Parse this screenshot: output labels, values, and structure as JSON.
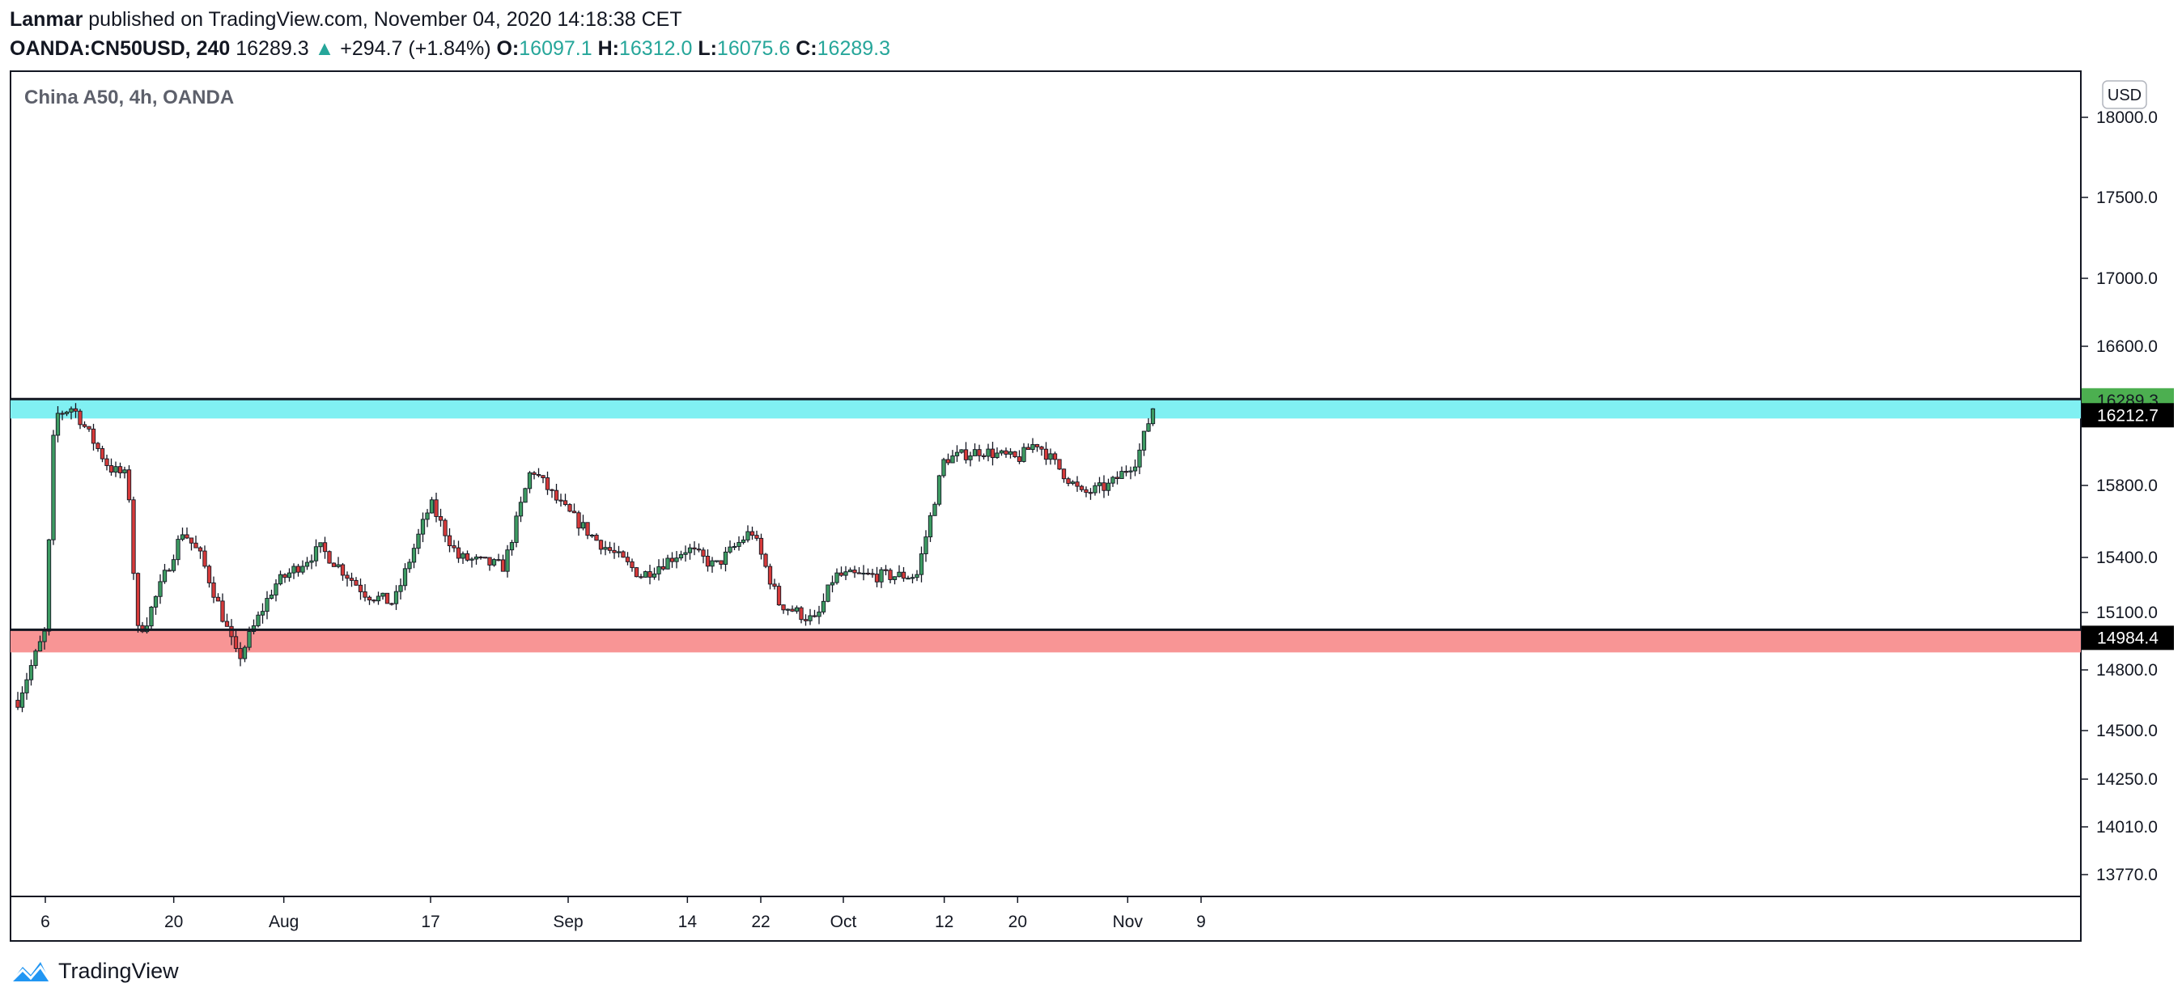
{
  "header": {
    "author": "Lanmar",
    "published_text": "published on TradingView.com, November 04, 2020 14:18:38 CET",
    "symbol": "OANDA:CN50USD, 240",
    "last": "16289.3",
    "change_arrow": "▲",
    "change": "+294.7 (+1.84%)",
    "o_label": "O:",
    "o_value": "16097.1",
    "h_label": "H:",
    "h_value": "16312.0",
    "l_label": "L:",
    "l_value": "16075.6",
    "c_label": "C:",
    "c_value": "16289.3"
  },
  "chart_title": "China A50, 4h, OANDA",
  "currency": "USD",
  "footer": {
    "brand": "TradingView"
  },
  "colors": {
    "up": "#26a69a",
    "down": "#ef5350",
    "candle_up": "#3d9b62",
    "candle_down": "#d63a3a",
    "resistance_band": "#80f0f2",
    "support_band": "#f89595",
    "last_price": "#4caf50"
  },
  "chart_data": {
    "type": "candlestick",
    "title": "China A50, 4h, OANDA",
    "x_tick_labels": [
      "6",
      "20",
      "Aug",
      "17",
      "Sep",
      "14",
      "22",
      "Oct",
      "12",
      "20",
      "Nov",
      "9"
    ],
    "y_tick_labels": [
      "18000.0",
      "17500.0",
      "17000.0",
      "16600.0",
      "15800.0",
      "15400.0",
      "15100.0",
      "14800.0",
      "14500.0",
      "14250.0",
      "14010.0",
      "13770.0"
    ],
    "price_labels": {
      "last": "16289.3",
      "resistance": "16212.7",
      "support": "14984.4"
    },
    "levels": {
      "resistance": 16212.7,
      "support": 14984.4,
      "last": 16289.3
    },
    "series_close_path": [
      [
        "2020-07-03",
        14650
      ],
      [
        "2020-07-06",
        15000
      ],
      [
        "2020-07-07",
        16200
      ],
      [
        "2020-07-09",
        16250
      ],
      [
        "2020-07-13",
        15900
      ],
      [
        "2020-07-15",
        15850
      ],
      [
        "2020-07-16",
        15000
      ],
      [
        "2020-07-17",
        15050
      ],
      [
        "2020-07-21",
        15550
      ],
      [
        "2020-07-23",
        15400
      ],
      [
        "2020-07-27",
        14850
      ],
      [
        "2020-07-31",
        15250
      ],
      [
        "2020-08-05",
        15450
      ],
      [
        "2020-08-10",
        15200
      ],
      [
        "2020-08-13",
        15150
      ],
      [
        "2020-08-17",
        15700
      ],
      [
        "2020-08-20",
        15400
      ],
      [
        "2020-08-25",
        15350
      ],
      [
        "2020-08-28",
        15900
      ],
      [
        "2020-08-31",
        15700
      ],
      [
        "2020-09-04",
        15500
      ],
      [
        "2020-09-09",
        15300
      ],
      [
        "2020-09-14",
        15450
      ],
      [
        "2020-09-17",
        15350
      ],
      [
        "2020-09-21",
        15550
      ],
      [
        "2020-09-24",
        15150
      ],
      [
        "2020-09-28",
        15050
      ],
      [
        "2020-09-30",
        15300
      ],
      [
        "2020-10-09",
        15300
      ],
      [
        "2020-10-12",
        15950
      ],
      [
        "2020-10-16",
        16000
      ],
      [
        "2020-10-20",
        15950
      ],
      [
        "2020-10-22",
        16050
      ],
      [
        "2020-10-27",
        15750
      ],
      [
        "2020-10-30",
        15800
      ],
      [
        "2020-11-02",
        15950
      ],
      [
        "2020-11-04",
        16289.3
      ]
    ]
  }
}
